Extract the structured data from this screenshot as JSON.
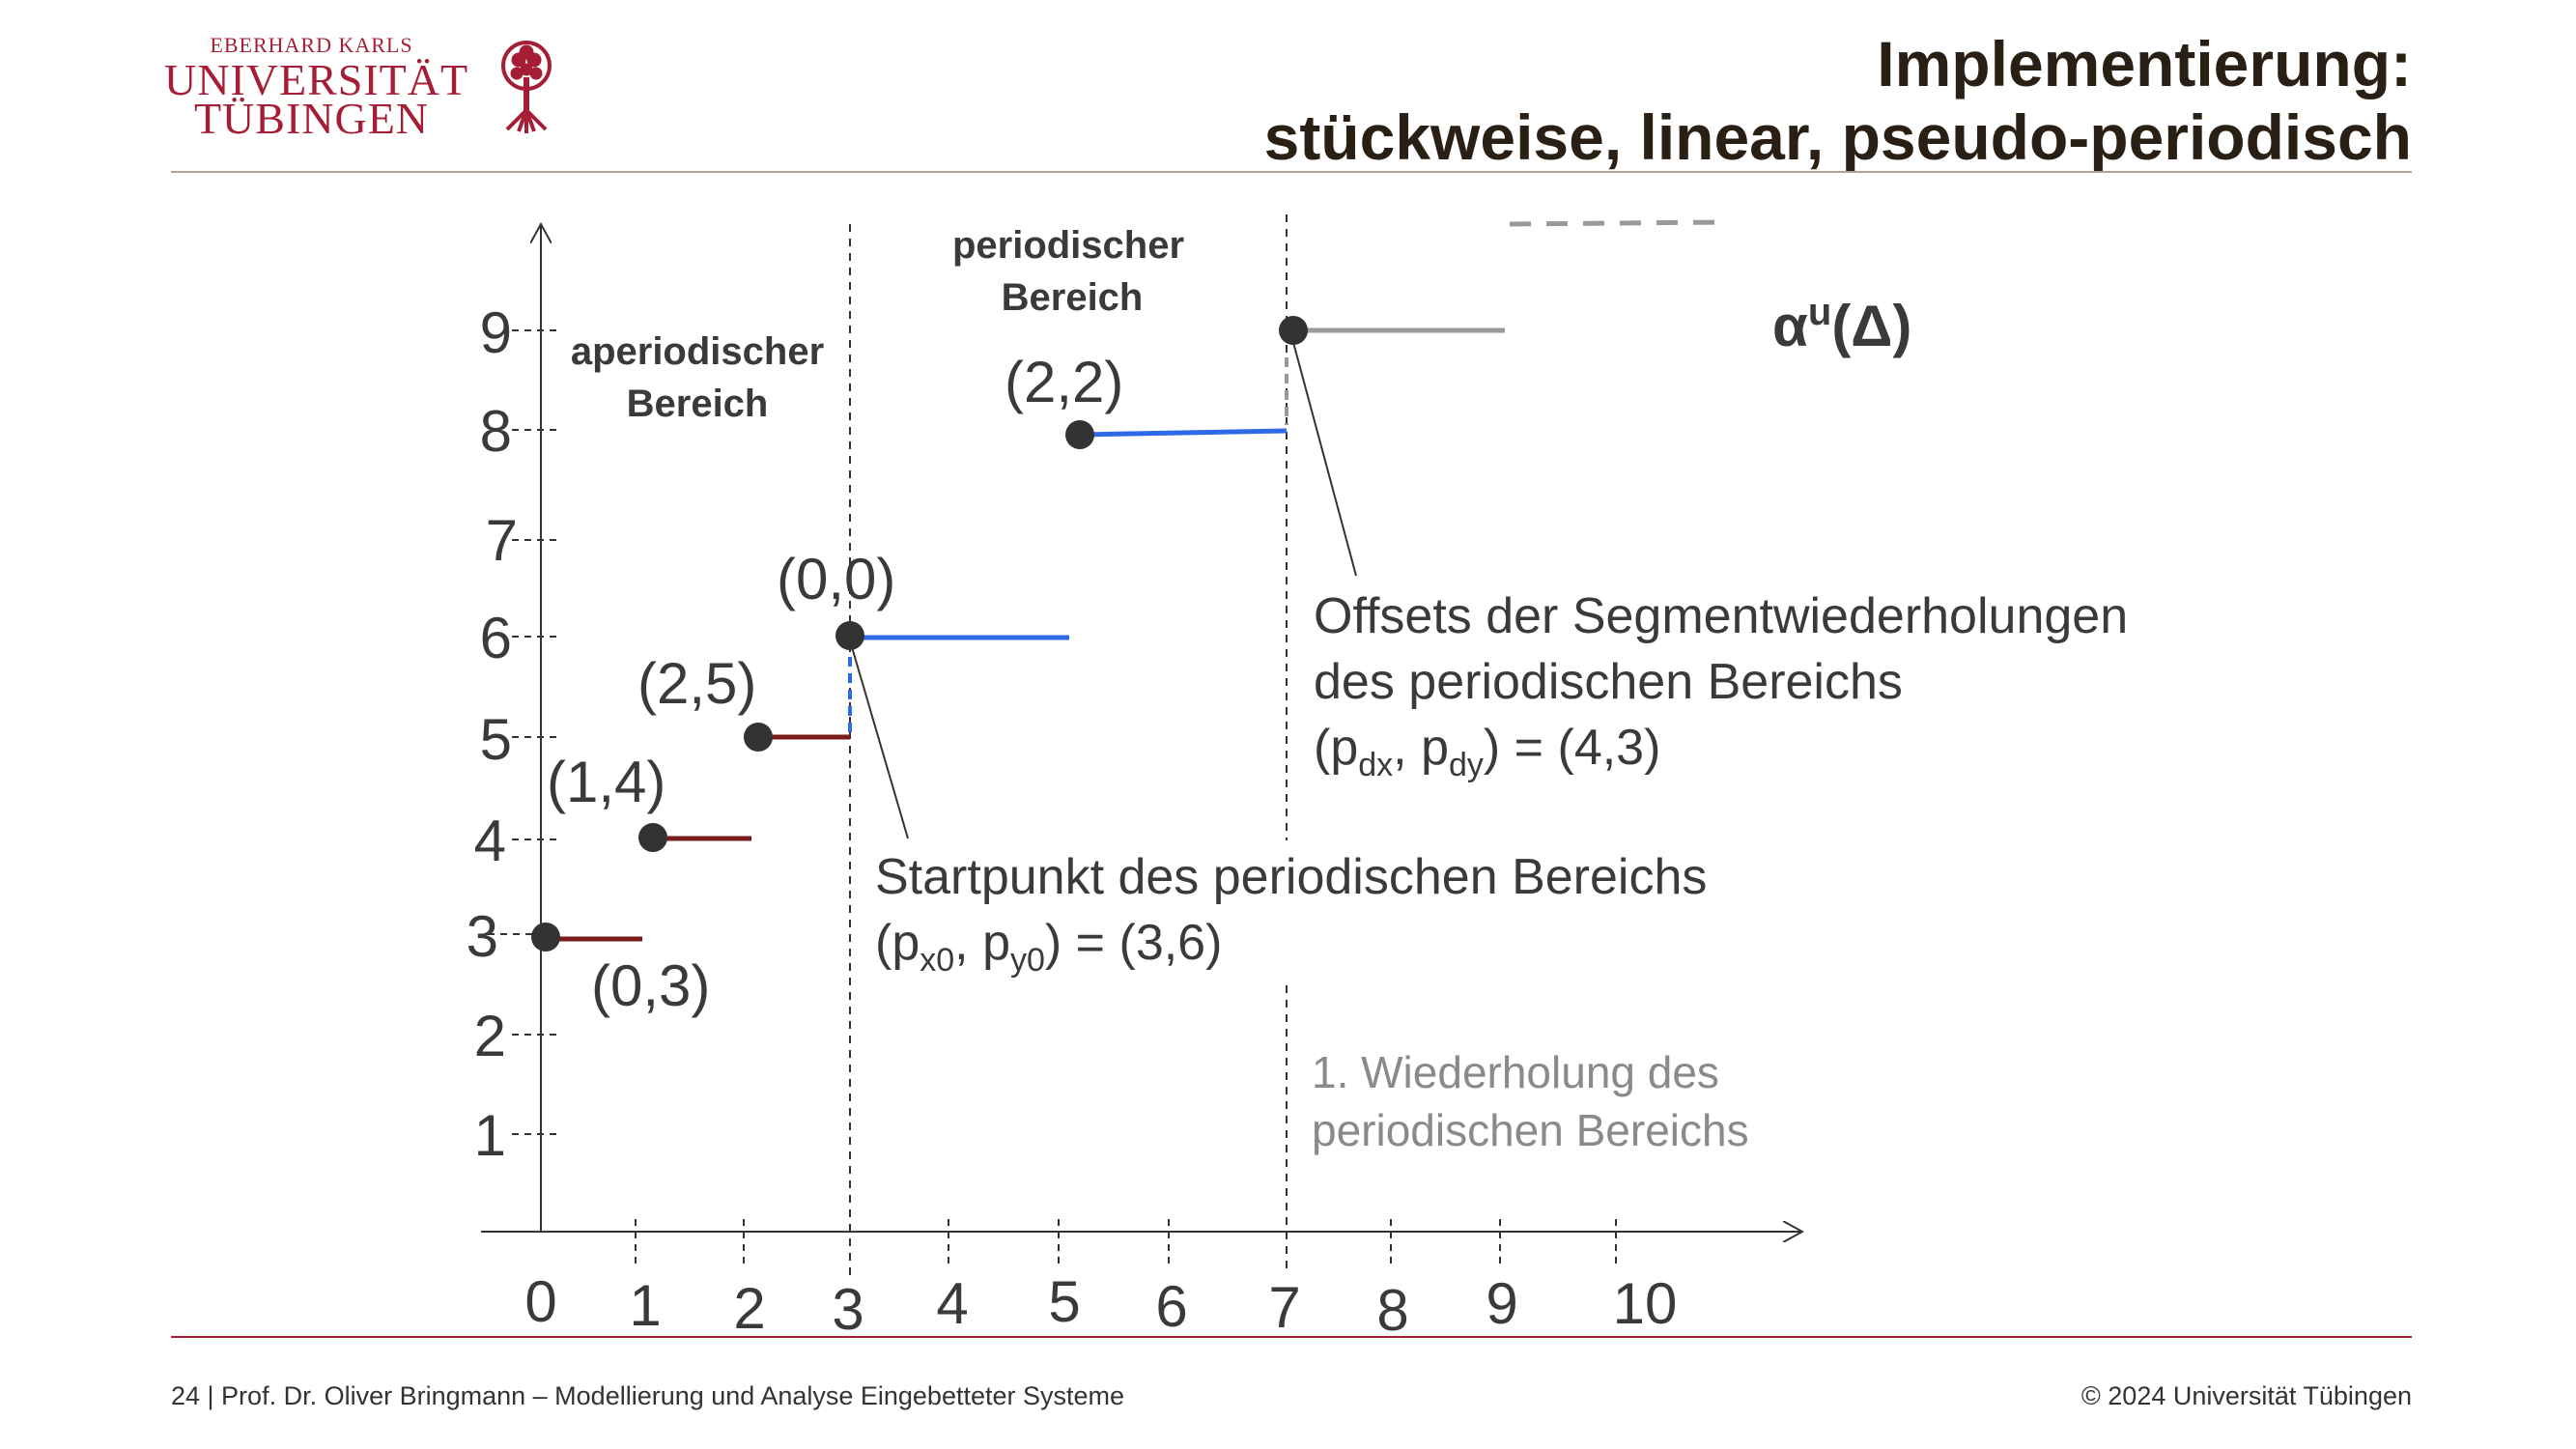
{
  "header": {
    "logo_line1": "EBERHARD KARLS",
    "logo_line2": "UNIVERSITÄT",
    "logo_line3": "TÜBINGEN",
    "title_line1": "Implementierung:",
    "title_line2": "stückweise, linear, pseudo-periodisch"
  },
  "footer": {
    "left": "24 | Prof. Dr. Oliver Bringmann – Modellierung und Analyse Eingebetteter Systeme",
    "right": "© 2024 Universität Tübingen"
  },
  "diagram": {
    "x_ticks": [
      "0",
      "1",
      "2",
      "3",
      "4",
      "5",
      "6",
      "7",
      "8",
      "9",
      "10"
    ],
    "y_ticks": [
      "1",
      "2",
      "3",
      "4",
      "5",
      "6",
      "7",
      "8",
      "9"
    ],
    "region_aperiodic": [
      "aperiodischer",
      "Bereich"
    ],
    "region_periodic": [
      "periodischer",
      "Bereich"
    ],
    "curve_label_base": "α",
    "curve_label_sup": "u",
    "curve_label_tail": "(Δ)",
    "points": {
      "p03": "(0,3)",
      "p14": "(1,4)",
      "p25": "(2,5)",
      "p00": "(0,0)",
      "p22": "(2,2)"
    },
    "start_label_line1": "Startpunkt des periodischen Bereichs",
    "start_label_pre": "(p",
    "start_label_sub1": "x0",
    "start_label_mid": ", p",
    "start_label_sub2": "y0",
    "start_label_post": ") = (3,6)",
    "offset_label_line1": "Offsets der Segmentwiederholungen",
    "offset_label_line2": "des periodischen Bereichs",
    "offset_label_pre": "(p",
    "offset_label_sub1": "dx",
    "offset_label_mid": ", p",
    "offset_label_sub2": "dy",
    "offset_label_post": ") = (4,3)",
    "repeat_label_line1": "1. Wiederholung des",
    "repeat_label_line2": "periodischen Bereichs"
  },
  "colors": {
    "aperiodic_segment": "#7b1a1a",
    "periodic_segment": "#2f6ae6",
    "repeat_segment": "#999999",
    "rule": "#b0a48e",
    "footer_rule": "#a51e36",
    "logo": "#a51e36"
  }
}
